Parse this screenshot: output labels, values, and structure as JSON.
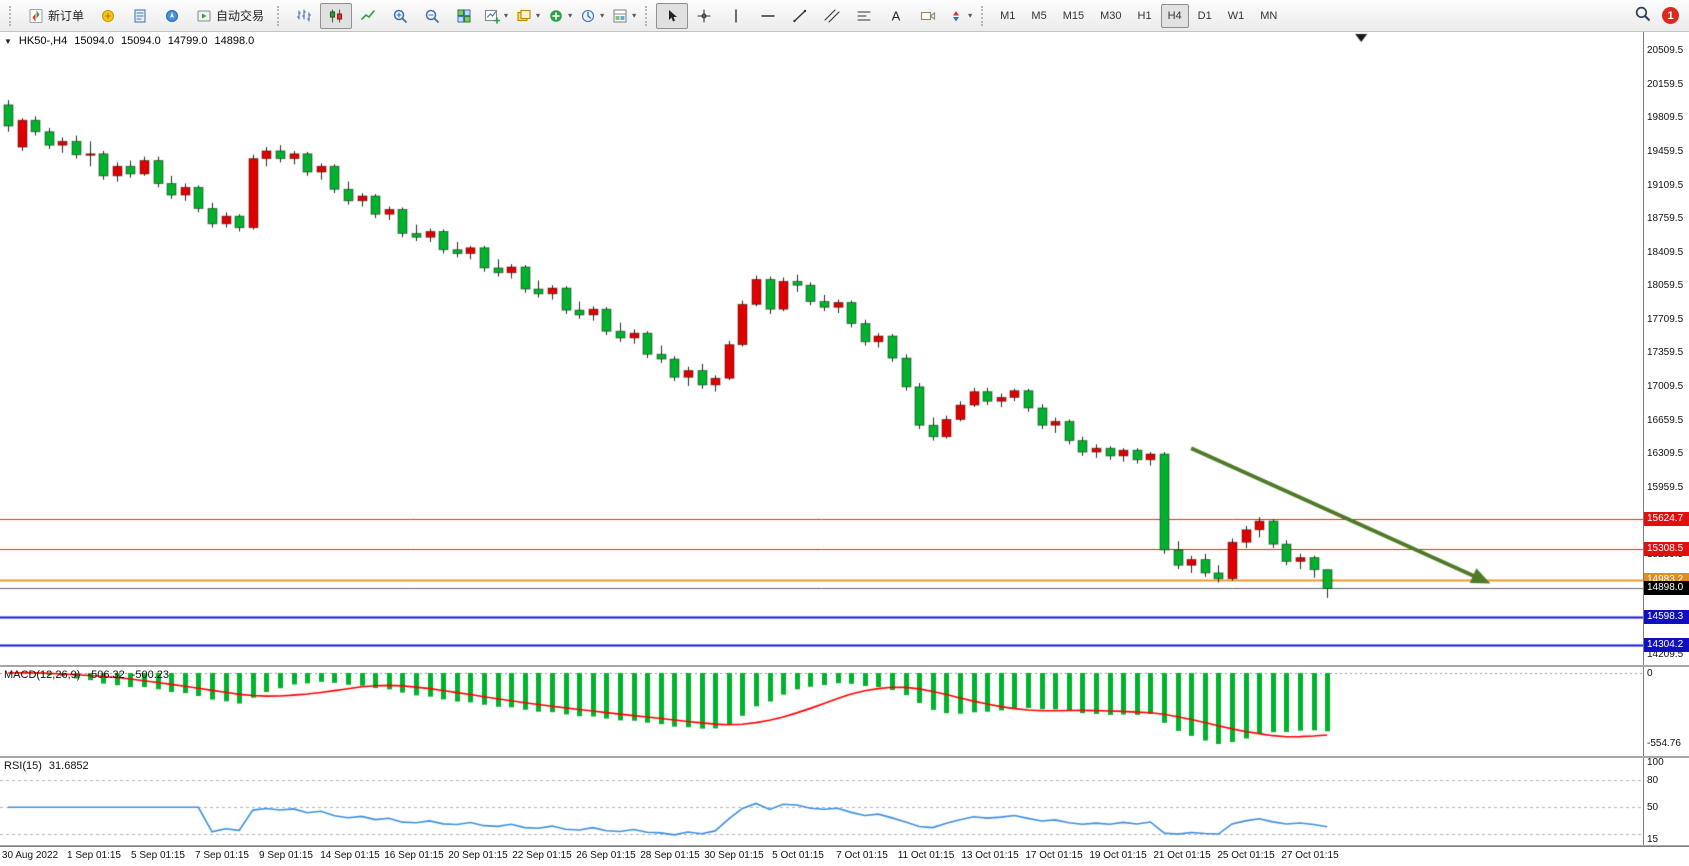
{
  "toolbar": {
    "groups": [
      {
        "name": "trade",
        "items": [
          {
            "name": "new-order",
            "icon": "new-order-icon",
            "label": "新订单"
          },
          {
            "name": "symbols",
            "icon": "symbols-icon"
          },
          {
            "name": "market-watch",
            "icon": "market-watch-icon"
          },
          {
            "name": "navigator",
            "icon": "navigator-icon"
          },
          {
            "name": "auto-trading",
            "icon": "autotrade-icon",
            "label": "自动交易"
          }
        ]
      },
      {
        "name": "charts",
        "items": [
          {
            "name": "bar-chart-mode",
            "icon": "bars-icon"
          },
          {
            "name": "candlestick-mode",
            "icon": "candles-icon",
            "active": true
          },
          {
            "name": "line-chart-mode",
            "icon": "line-icon"
          },
          {
            "name": "zoom-in",
            "icon": "zoom-in-icon"
          },
          {
            "name": "zoom-out",
            "icon": "zoom-out-icon"
          },
          {
            "name": "tile-windows",
            "icon": "tile-icon"
          },
          {
            "name": "new-chart",
            "icon": "new-chart-icon",
            "caret": true
          },
          {
            "name": "profiles",
            "icon": "profiles-icon",
            "caret": true
          },
          {
            "name": "indicators",
            "icon": "indicators-icon",
            "caret": true
          },
          {
            "name": "periods",
            "icon": "periods-icon",
            "caret": true
          },
          {
            "name": "templates",
            "icon": "templates-icon",
            "caret": true
          }
        ]
      },
      {
        "name": "studies",
        "items": [
          {
            "name": "cursor",
            "icon": "cursor-icon",
            "active": true
          },
          {
            "name": "crosshair",
            "icon": "crosshair-icon"
          },
          {
            "name": "vertical-line",
            "icon": "vline-icon"
          },
          {
            "name": "horizontal-line",
            "icon": "hline-icon"
          },
          {
            "name": "trendline",
            "icon": "trendline-icon"
          },
          {
            "name": "equidistant-channel",
            "icon": "channel-icon"
          },
          {
            "name": "fibonacci-retracement",
            "icon": "fibo-icon"
          },
          {
            "name": "text",
            "icon": "text-icon"
          },
          {
            "name": "text-label",
            "icon": "label-icon"
          },
          {
            "name": "arrow-objects",
            "icon": "arrows-icon",
            "caret": true
          }
        ]
      }
    ],
    "timeframes": [
      "M1",
      "M5",
      "M15",
      "M30",
      "H1",
      "H4",
      "D1",
      "W1",
      "MN"
    ],
    "active_timeframe": "H4",
    "notification_count": "1"
  },
  "chart": {
    "collapse_icon": "▼",
    "symbol_period": "HK50-,H4",
    "open": "15094.0",
    "high": "15094.0",
    "low": "14799.0",
    "close": "14898.0"
  },
  "indicators": {
    "macd": {
      "label": "MACD(12,26,9)",
      "value_main": "-506.32",
      "value_signal": "-500.23",
      "axis_top": "0",
      "axis_bottom": "-554.76"
    },
    "rsi": {
      "label": "RSI(15)",
      "value": "31.6852",
      "axis": [
        {
          "text": "100",
          "v": 100
        },
        {
          "text": "80",
          "v": 80
        },
        {
          "text": "50",
          "v": 50
        },
        {
          "text": "15",
          "v": 15
        }
      ]
    }
  },
  "chart_data": {
    "type": "candlestick",
    "symbol": "HK50-",
    "timeframe": "H4",
    "title": "HK50-,H4",
    "price_axis": {
      "max": 20700,
      "min": 14100,
      "labels": [
        "20509.5",
        "20159.5",
        "19809.5",
        "19459.5",
        "19109.5",
        "18759.5",
        "18409.5",
        "18059.5",
        "17709.5",
        "17359.5",
        "17009.5",
        "16659.5",
        "16309.5",
        "15959.5",
        "15609.5",
        "15259.5",
        "14909.5",
        "14559.5",
        "14209.5"
      ]
    },
    "colors": {
      "up": "#e00000",
      "down": "#00b22d",
      "wick": "#2a2a2a"
    },
    "candles": [
      [
        19940,
        19990,
        19660,
        19720
      ],
      [
        19500,
        19800,
        19460,
        19780
      ],
      [
        19780,
        19820,
        19620,
        19660
      ],
      [
        19660,
        19700,
        19480,
        19520
      ],
      [
        19520,
        19600,
        19440,
        19560
      ],
      [
        19560,
        19620,
        19380,
        19420
      ],
      [
        19420,
        19560,
        19300,
        19430
      ],
      [
        19430,
        19460,
        19160,
        19200
      ],
      [
        19200,
        19340,
        19140,
        19300
      ],
      [
        19300,
        19360,
        19180,
        19220
      ],
      [
        19220,
        19400,
        19200,
        19360
      ],
      [
        19360,
        19400,
        19080,
        19120
      ],
      [
        19120,
        19200,
        18960,
        19000
      ],
      [
        19000,
        19120,
        18940,
        19080
      ],
      [
        19080,
        19100,
        18820,
        18860
      ],
      [
        18860,
        18920,
        18660,
        18700
      ],
      [
        18700,
        18820,
        18660,
        18780
      ],
      [
        18780,
        18800,
        18620,
        18660
      ],
      [
        18660,
        19420,
        18640,
        19380
      ],
      [
        19380,
        19500,
        19300,
        19460
      ],
      [
        19460,
        19520,
        19340,
        19380
      ],
      [
        19380,
        19460,
        19320,
        19430
      ],
      [
        19430,
        19450,
        19200,
        19240
      ],
      [
        19240,
        19330,
        19160,
        19300
      ],
      [
        19300,
        19320,
        19020,
        19060
      ],
      [
        19060,
        19140,
        18900,
        18940
      ],
      [
        18940,
        19020,
        18880,
        18990
      ],
      [
        18990,
        19010,
        18760,
        18800
      ],
      [
        18800,
        18880,
        18740,
        18850
      ],
      [
        18850,
        18870,
        18560,
        18600
      ],
      [
        18600,
        18690,
        18520,
        18560
      ],
      [
        18560,
        18650,
        18510,
        18620
      ],
      [
        18620,
        18640,
        18390,
        18430
      ],
      [
        18430,
        18510,
        18350,
        18390
      ],
      [
        18390,
        18470,
        18330,
        18450
      ],
      [
        18450,
        18470,
        18200,
        18240
      ],
      [
        18240,
        18330,
        18150,
        18190
      ],
      [
        18190,
        18280,
        18130,
        18250
      ],
      [
        18250,
        18270,
        17980,
        18020
      ],
      [
        18020,
        18110,
        17930,
        17970
      ],
      [
        17970,
        18060,
        17910,
        18030
      ],
      [
        18030,
        18050,
        17760,
        17800
      ],
      [
        17800,
        17890,
        17710,
        17750
      ],
      [
        17750,
        17840,
        17690,
        17810
      ],
      [
        17810,
        17830,
        17540,
        17580
      ],
      [
        17580,
        17670,
        17470,
        17510
      ],
      [
        17510,
        17600,
        17450,
        17560
      ],
      [
        17560,
        17580,
        17300,
        17340
      ],
      [
        17340,
        17430,
        17250,
        17290
      ],
      [
        17290,
        17320,
        17060,
        17100
      ],
      [
        17100,
        17210,
        17010,
        17170
      ],
      [
        17170,
        17240,
        16980,
        17020
      ],
      [
        17020,
        17120,
        16950,
        17090
      ],
      [
        17090,
        17480,
        17070,
        17440
      ],
      [
        17440,
        17900,
        17420,
        17860
      ],
      [
        17860,
        18160,
        17840,
        18120
      ],
      [
        18120,
        18150,
        17760,
        17810
      ],
      [
        17810,
        18140,
        17790,
        18100
      ],
      [
        18100,
        18170,
        17990,
        18060
      ],
      [
        18060,
        18090,
        17850,
        17890
      ],
      [
        17890,
        17960,
        17790,
        17830
      ],
      [
        17830,
        17910,
        17770,
        17880
      ],
      [
        17880,
        17900,
        17620,
        17660
      ],
      [
        17660,
        17700,
        17430,
        17470
      ],
      [
        17470,
        17560,
        17410,
        17530
      ],
      [
        17530,
        17550,
        17260,
        17300
      ],
      [
        17300,
        17340,
        16960,
        17000
      ],
      [
        17000,
        17040,
        16560,
        16600
      ],
      [
        16600,
        16680,
        16440,
        16480
      ],
      [
        16480,
        16700,
        16460,
        16660
      ],
      [
        16660,
        16850,
        16640,
        16810
      ],
      [
        16810,
        16990,
        16790,
        16950
      ],
      [
        16950,
        16990,
        16810,
        16850
      ],
      [
        16850,
        16930,
        16790,
        16890
      ],
      [
        16890,
        16980,
        16850,
        16960
      ],
      [
        16960,
        16980,
        16740,
        16780
      ],
      [
        16780,
        16820,
        16560,
        16600
      ],
      [
        16600,
        16680,
        16520,
        16640
      ],
      [
        16640,
        16660,
        16400,
        16440
      ],
      [
        16440,
        16480,
        16280,
        16320
      ],
      [
        16320,
        16400,
        16260,
        16360
      ],
      [
        16360,
        16380,
        16240,
        16280
      ],
      [
        16280,
        16360,
        16220,
        16340
      ],
      [
        16340,
        16360,
        16200,
        16240
      ],
      [
        16240,
        16320,
        16180,
        16300
      ],
      [
        16300,
        16320,
        15260,
        15300
      ],
      [
        15300,
        15390,
        15100,
        15140
      ],
      [
        15140,
        15240,
        15060,
        15200
      ],
      [
        15200,
        15260,
        15020,
        15060
      ],
      [
        15060,
        15140,
        14960,
        15000
      ],
      [
        15000,
        15420,
        14980,
        15380
      ],
      [
        15380,
        15550,
        15320,
        15510
      ],
      [
        15510,
        15640,
        15430,
        15600
      ],
      [
        15600,
        15620,
        15320,
        15360
      ],
      [
        15360,
        15400,
        15140,
        15180
      ],
      [
        15180,
        15260,
        15100,
        15220
      ],
      [
        15220,
        15240,
        15010,
        15094
      ],
      [
        15094,
        15094,
        14799,
        14898
      ]
    ],
    "levels": [
      {
        "name": "resistance-1",
        "price": 15624.7,
        "label": "15624.7",
        "color": "#ff1e1e",
        "badge": "#e01010",
        "width": 1
      },
      {
        "name": "resistance-2",
        "price": 15308.5,
        "label": "15308.5",
        "color": "#ff1e1e",
        "badge": "#e01010",
        "width": 1
      },
      {
        "name": "support-orange",
        "price": 14983.2,
        "label": "14983.2",
        "color": "#e8992a",
        "badge": "#dd8e1e",
        "width": 2
      },
      {
        "name": "support-blue-1",
        "price": 14598.3,
        "label": "14598.3",
        "color": "#1515d4",
        "badge": "#0f0fc0",
        "width": 2
      },
      {
        "name": "support-blue-2",
        "price": 14304.2,
        "label": "14304.2",
        "color": "#1515d4",
        "badge": "#0f0fc0",
        "width": 2
      }
    ],
    "current_price": {
      "price": 14898.0,
      "label": "14898.0",
      "line_color": "#666666",
      "badge": "#000000"
    },
    "trend_arrow": {
      "from_index": 87,
      "from_price": 16360,
      "to_index": 109,
      "to_price": 14950,
      "color": "#4f7a28"
    },
    "shift_marker_index": 99.5,
    "time_labels": [
      "30 Aug 2022",
      "1 Sep 01:15",
      "5 Sep 01:15",
      "7 Sep 01:15",
      "9 Sep 01:15",
      "14 Sep 01:15",
      "16 Sep 01:15",
      "20 Sep 01:15",
      "22 Sep 01:15",
      "26 Sep 01:15",
      "28 Sep 01:15",
      "30 Sep 01:15",
      "5 Oct 01:15",
      "7 Oct 01:15",
      "11 Oct 01:15",
      "13 Oct 01:15",
      "17 Oct 01:15",
      "19 Oct 01:15",
      "21 Oct 01:15",
      "25 Oct 01:15",
      "27 Oct 01:15"
    ],
    "macd": {
      "fast": 12,
      "slow": 26,
      "signal": 9,
      "histogram_color": "#00b22d",
      "signal_color": "#ff0000"
    },
    "rsi": {
      "period": 15,
      "color": "#3e8ede",
      "levels": [
        80,
        50,
        20
      ]
    }
  }
}
